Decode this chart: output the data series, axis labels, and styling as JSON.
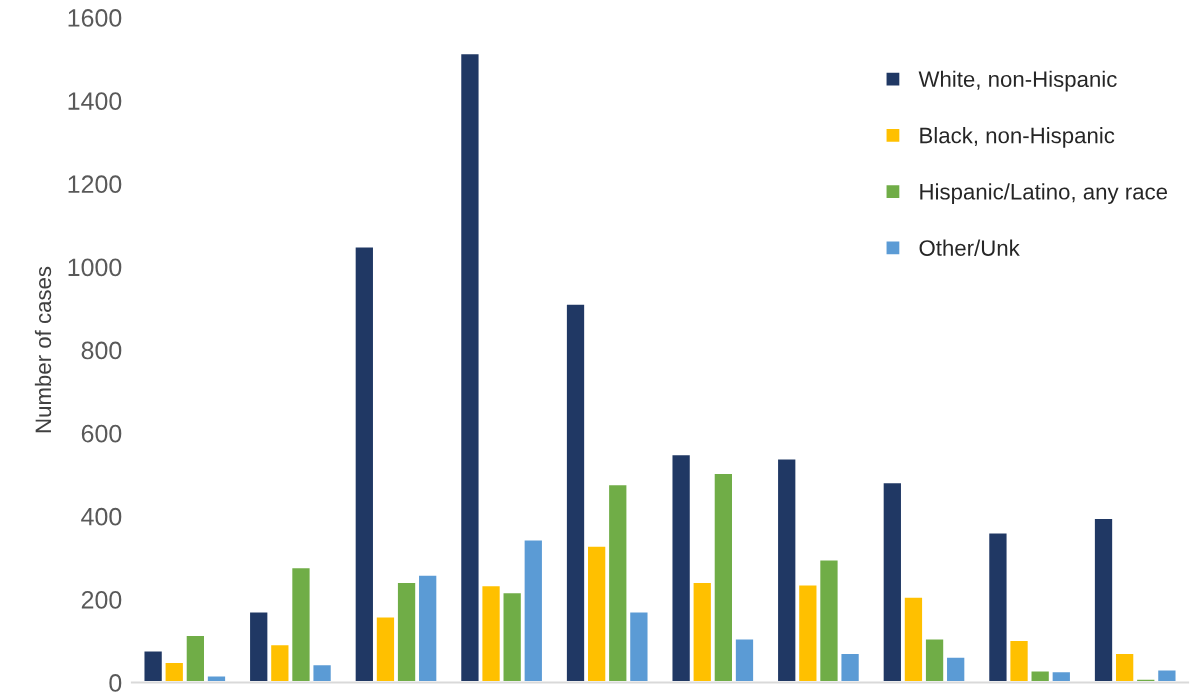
{
  "chart_data": {
    "type": "bar",
    "ylabel": "Number of cases",
    "categories": [
      null,
      null,
      null,
      null,
      null,
      null,
      null,
      null,
      null,
      null
    ],
    "series": [
      {
        "name": "White, non-Hispanic",
        "color": "#203864",
        "values": [
          78,
          172,
          1050,
          1515,
          912,
          550,
          540,
          483,
          362,
          397
        ]
      },
      {
        "name": "Black, non-Hispanic",
        "color": "#ffc000",
        "values": [
          50,
          93,
          160,
          235,
          330,
          243,
          237,
          207,
          103,
          72
        ]
      },
      {
        "name": "Hispanic/Latino, any race",
        "color": "#70ad47",
        "values": [
          115,
          278,
          243,
          218,
          478,
          505,
          297,
          107,
          30,
          10
        ]
      },
      {
        "name": "Other/Unk",
        "color": "#5b9bd5",
        "values": [
          18,
          45,
          260,
          345,
          172,
          107,
          72,
          63,
          28,
          32
        ]
      }
    ],
    "ylim": [
      0,
      1600
    ],
    "yticks": [
      0,
      200,
      400,
      600,
      800,
      1000,
      1200,
      1400,
      1600
    ],
    "tick_labels": "y",
    "grid": false,
    "legend": "top right"
  }
}
